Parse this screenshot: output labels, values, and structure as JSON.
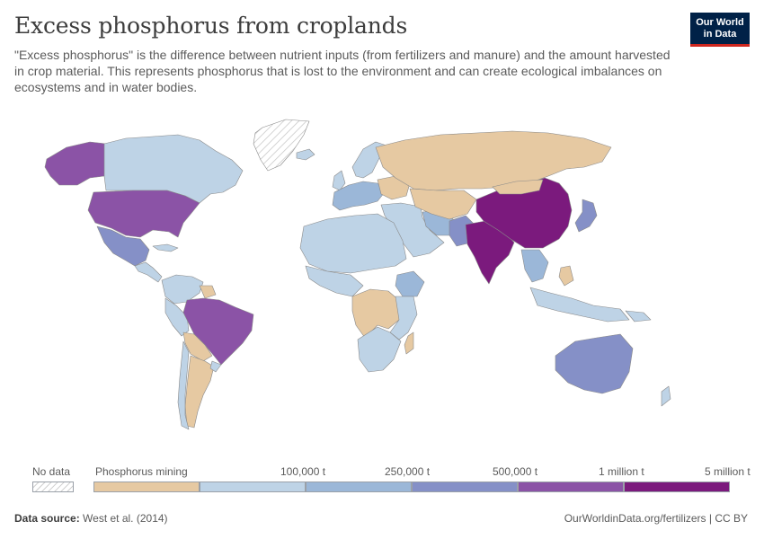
{
  "title": "Excess phosphorus from croplands",
  "subtitle": "\"Excess phosphorus\" is the difference between nutrient inputs (from fertilizers and manure) and the amount harvested in crop material. This represents phosphorus that is lost to the environment and can create ecological imbalances on ecosystems and in water bodies.",
  "logo": {
    "line1": "Our World",
    "line2": "in Data"
  },
  "legend": {
    "no_data_label": "No data",
    "no_data_pattern": "diagonal-hatch",
    "bins": [
      {
        "label": "Phosphorus mining",
        "color": "#e6c9a2"
      },
      {
        "label": "100,000 t",
        "color": "#bed3e6"
      },
      {
        "label": "250,000 t",
        "color": "#9bb7d8"
      },
      {
        "label": "500,000 t",
        "color": "#8590c7"
      },
      {
        "label": "1 million t",
        "color": "#8b53a6"
      },
      {
        "label": "5 million t",
        "color": "#7b1a7d"
      }
    ]
  },
  "colors": {
    "mining": "#e6c9a2",
    "low": "#bed3e6",
    "mid": "#9bb7d8",
    "midhigh": "#8590c7",
    "high": "#8b53a6",
    "top": "#7b1a7d",
    "border": "#8a8a8a"
  },
  "footer": {
    "source_label": "Data source:",
    "source_value": "West et al. (2014)",
    "url": "OurWorldinData.org/fertilizers | CC BY"
  }
}
